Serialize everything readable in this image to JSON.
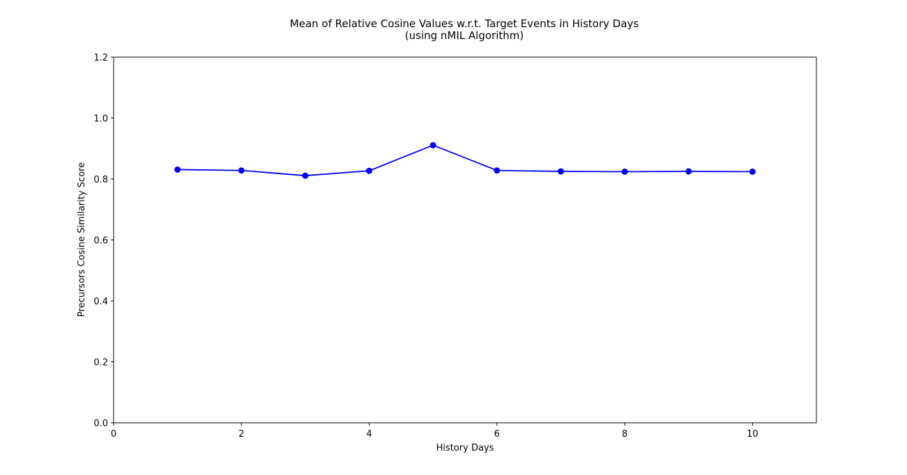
{
  "chart_data": {
    "type": "line",
    "title": "Mean of Relative Cosine Values w.r.t. Target Events in History Days",
    "subtitle": "(using nMIL Algorithm)",
    "xlabel": "History Days",
    "ylabel": "Precursors Cosine Similarity Score",
    "xlim": [
      0,
      11
    ],
    "ylim": [
      0,
      1.2
    ],
    "xticks": [
      "0",
      "2",
      "4",
      "6",
      "8",
      "10"
    ],
    "yticks": [
      "0.0",
      "0.2",
      "0.4",
      "0.6",
      "0.8",
      "1.0",
      "1.2"
    ],
    "grid": false,
    "series": [
      {
        "color": "#0000ff",
        "marker": "circle",
        "x": [
          1,
          2,
          3,
          4,
          5,
          6,
          7,
          8,
          9,
          10
        ],
        "values": [
          0.831,
          0.828,
          0.811,
          0.827,
          0.911,
          0.828,
          0.825,
          0.824,
          0.825,
          0.824
        ]
      }
    ]
  }
}
